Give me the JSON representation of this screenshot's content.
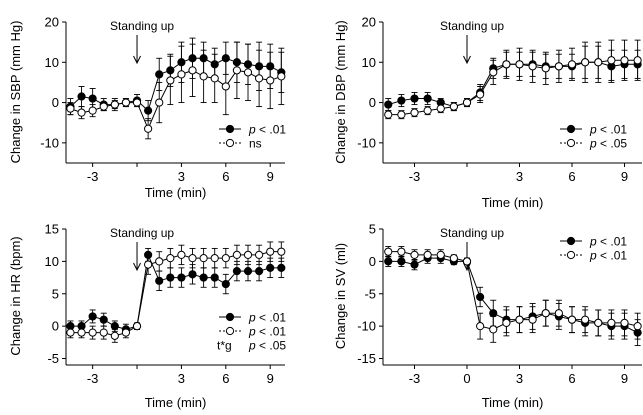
{
  "chart_data": [
    {
      "type": "line",
      "title": "",
      "xlabel": "Time (min)",
      "ylabel": "Change in SBP (mm Hg)",
      "ylim": [
        -15,
        20
      ],
      "xlim": [
        -4.8,
        10
      ],
      "xticks": [
        -3,
        0,
        3,
        6,
        9
      ],
      "xtick_labels": [
        "-3",
        "",
        "3",
        "6",
        "9"
      ],
      "yticks": [
        -10,
        0,
        10,
        20
      ],
      "grid": false,
      "legend_position": "bottom-right",
      "annotation": "Standing up",
      "arrow_x": 0,
      "x": [
        -4.5,
        -3.75,
        -3,
        -2.25,
        -1.5,
        -0.75,
        0,
        0.75,
        1.5,
        2.25,
        3,
        3.75,
        4.5,
        5.25,
        6,
        6.75,
        7.5,
        8.25,
        9,
        9.75
      ],
      "series": [
        {
          "name": "p < .01",
          "marker": "filled",
          "values": [
            -1,
            1.5,
            1,
            -0.5,
            -0.5,
            0,
            0.5,
            -2,
            7,
            8,
            10,
            11,
            11,
            9.5,
            11,
            10,
            9.5,
            9,
            9,
            7.5
          ],
          "errors": [
            2,
            2.5,
            2.5,
            1.5,
            1.5,
            1,
            1.5,
            2.5,
            4,
            4,
            5,
            5,
            4,
            4,
            4,
            5,
            5,
            6,
            5.5,
            5
          ]
        },
        {
          "name": "ns",
          "marker": "open",
          "values": [
            -1.5,
            -2.5,
            -2,
            -1,
            -0.5,
            0,
            0,
            -6.5,
            0,
            5.5,
            7,
            8,
            6.5,
            6,
            4,
            8,
            7.5,
            6,
            5.5,
            6.5
          ],
          "errors": [
            1.5,
            1.5,
            1.5,
            1,
            1,
            1,
            1,
            2.5,
            5,
            6,
            7,
            6.5,
            6.5,
            6,
            7,
            7,
            7,
            7,
            7,
            7
          ]
        }
      ]
    },
    {
      "type": "line",
      "title": "",
      "xlabel": "Time (min)",
      "ylabel": "Change in DBP (mm Hg)",
      "ylim": [
        -15,
        20
      ],
      "xlim": [
        -4.8,
        10
      ],
      "xticks": [
        -3,
        0,
        3,
        6,
        9
      ],
      "xtick_labels": [
        "-3",
        "",
        "3",
        "6",
        "9"
      ],
      "yticks": [
        -10,
        0,
        10,
        20
      ],
      "grid": false,
      "legend_position": "bottom-right",
      "annotation": "Standing up",
      "arrow_x": 0,
      "x": [
        -4.5,
        -3.75,
        -3,
        -2.25,
        -1.5,
        -0.75,
        0,
        0.75,
        1.5,
        2.25,
        3,
        3.75,
        4.5,
        5.25,
        6,
        6.75,
        7.5,
        8.25,
        9,
        9.75
      ],
      "series": [
        {
          "name": "p < .01",
          "marker": "filled",
          "values": [
            -0.5,
            0.5,
            1,
            1,
            0,
            -1,
            0,
            2.5,
            8.5,
            9.5,
            9.5,
            9.5,
            9,
            9,
            9,
            10,
            10,
            9,
            9.5,
            9.5
          ],
          "errors": [
            1.5,
            1.5,
            1.5,
            1.5,
            1,
            1,
            1,
            2,
            2.5,
            3,
            3,
            3,
            3,
            3,
            3,
            4,
            4,
            4,
            3.5,
            3.5
          ]
        },
        {
          "name": "p < .05",
          "marker": "open",
          "values": [
            -3,
            -3,
            -2.5,
            -2,
            -1.5,
            -1,
            0,
            2,
            7.5,
            9.5,
            9.5,
            9,
            8.5,
            9,
            9.5,
            10,
            10,
            10.5,
            10.5,
            10.5
          ],
          "errors": [
            1,
            1,
            1,
            1,
            1,
            1,
            1,
            2,
            3,
            3.5,
            4,
            4,
            4,
            4,
            4,
            5,
            5,
            5,
            5,
            5
          ]
        }
      ]
    },
    {
      "type": "line",
      "title": "",
      "xlabel": "Time (min)",
      "ylabel": "Change in HR (bpm)",
      "ylim": [
        -6,
        15
      ],
      "xlim": [
        -4.8,
        10
      ],
      "xticks": [
        -3,
        0,
        3,
        6,
        9
      ],
      "xtick_labels": [
        "-3",
        "",
        "3",
        "6",
        "9"
      ],
      "yticks": [
        -5,
        0,
        5,
        10,
        15
      ],
      "grid": false,
      "legend_position": "bottom-right",
      "annotation": "Standing up",
      "arrow_x": 0,
      "x": [
        -4.5,
        -3.75,
        -3,
        -2.25,
        -1.5,
        -0.75,
        0,
        0.75,
        1.5,
        2.25,
        3,
        3.75,
        4.5,
        5.25,
        6,
        6.75,
        7.5,
        8.25,
        9,
        9.75
      ],
      "series": [
        {
          "name": "p < .01",
          "marker": "filled",
          "values": [
            0,
            0,
            1.5,
            1,
            0,
            -0.5,
            0,
            11,
            7,
            7.5,
            7.5,
            8,
            7.5,
            7.5,
            6.5,
            8.5,
            8.5,
            8.5,
            9,
            9
          ],
          "errors": [
            0.8,
            0.8,
            1,
            1,
            0.8,
            0.8,
            0.5,
            1,
            1.5,
            1.5,
            1.5,
            1.5,
            1.5,
            1.5,
            1.5,
            1.5,
            1.5,
            1.5,
            1.5,
            1.5
          ]
        },
        {
          "name": "p < .01",
          "marker": "open",
          "values": [
            -1,
            -1,
            -1,
            -1,
            -1.5,
            -1,
            0,
            9.5,
            10,
            10.5,
            11,
            10.5,
            10.5,
            10.5,
            10.5,
            11,
            11,
            11,
            11.5,
            11.5
          ],
          "errors": [
            0.8,
            0.8,
            1,
            1,
            1,
            0.8,
            0.5,
            1.5,
            1.5,
            1.5,
            1.5,
            1.5,
            1.5,
            1.5,
            1.5,
            1.5,
            1.5,
            1.5,
            1.5,
            1.5
          ]
        }
      ],
      "extra_legend": {
        "prefix": "t*g",
        "text": "p < .05"
      }
    },
    {
      "type": "line",
      "title": "",
      "xlabel": "Time (min)",
      "ylabel": "Change in SV (ml)",
      "ylim": [
        -16,
        5
      ],
      "xlim": [
        -4.8,
        10
      ],
      "xticks": [
        -3,
        0,
        3,
        6,
        9
      ],
      "xtick_labels": [
        "-3",
        "0",
        "3",
        "6",
        "9"
      ],
      "yticks": [
        -15,
        -10,
        -5,
        0,
        5
      ],
      "grid": false,
      "legend_position": "top-right",
      "annotation": "Standing up",
      "arrow_x": 0,
      "x": [
        -4.5,
        -3.75,
        -3,
        -2.25,
        -1.5,
        -0.75,
        0,
        0.75,
        1.5,
        2.25,
        3,
        3.75,
        4.5,
        5.25,
        6,
        6.75,
        7.5,
        8.25,
        9,
        9.75
      ],
      "series": [
        {
          "name": "p < .01",
          "marker": "filled",
          "values": [
            0,
            0,
            -0.5,
            0.5,
            0.5,
            0,
            0,
            -5.5,
            -8,
            -9,
            -9,
            -8.5,
            -8,
            -8.5,
            -9,
            -9.5,
            -9.5,
            -10,
            -10,
            -11
          ],
          "errors": [
            0.8,
            0.8,
            0.8,
            0.8,
            0.8,
            0.5,
            0.5,
            1.5,
            2,
            2,
            2,
            2,
            2,
            2,
            2,
            2,
            2,
            2,
            2,
            2
          ]
        },
        {
          "name": "p < .01",
          "marker": "open",
          "values": [
            1.5,
            1.5,
            1,
            1,
            1,
            0.5,
            0,
            -10,
            -10.5,
            -9.5,
            -9,
            -9,
            -8,
            -8,
            -9,
            -9,
            -9.5,
            -9.5,
            -9.5,
            -10
          ],
          "errors": [
            0.8,
            0.8,
            0.8,
            0.8,
            0.8,
            0.5,
            0.5,
            2,
            2,
            2,
            2,
            2,
            2,
            2,
            2,
            2,
            2,
            2,
            2,
            2
          ]
        }
      ]
    }
  ]
}
